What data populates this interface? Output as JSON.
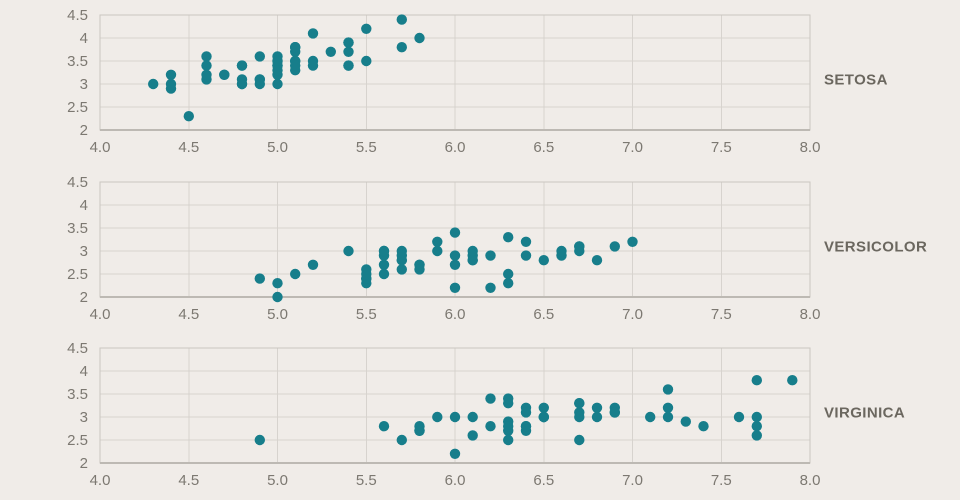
{
  "app": {
    "background": "#f0ece8"
  },
  "colors": {
    "point": "#177e8b",
    "grid": "#d7d3ce",
    "border": "#cac6c0",
    "axis_bottom": "#bdb9b3",
    "tick_label": "#7c7871",
    "series_label": "#6b675f"
  },
  "chart_data": [
    {
      "type": "scatter",
      "label": "SETOSA",
      "title": "",
      "xlabel": "",
      "ylabel": "",
      "grid": true,
      "legend": "none",
      "xlim": [
        4.0,
        8.0
      ],
      "ylim": [
        2.0,
        4.5
      ],
      "x_tick_values": [
        4.0,
        4.5,
        5.0,
        5.5,
        6.0,
        6.5,
        7.0,
        7.5,
        8.0
      ],
      "x_tick_labels": [
        "4.0",
        "4.5",
        "5.0",
        "5.5",
        "6.0",
        "6.5",
        "7.0",
        "7.5",
        "8.0"
      ],
      "y_tick_values": [
        2.0,
        2.5,
        3.0,
        3.5,
        4.0,
        4.5
      ],
      "y_tick_labels": [
        "2",
        "2.5",
        "3",
        "3.5",
        "4",
        "4.5"
      ],
      "points": [
        [
          5.1,
          3.5
        ],
        [
          4.9,
          3.0
        ],
        [
          4.7,
          3.2
        ],
        [
          4.6,
          3.1
        ],
        [
          5.0,
          3.6
        ],
        [
          5.4,
          3.9
        ],
        [
          4.6,
          3.4
        ],
        [
          5.0,
          3.4
        ],
        [
          4.4,
          2.9
        ],
        [
          4.9,
          3.1
        ],
        [
          5.4,
          3.7
        ],
        [
          4.8,
          3.4
        ],
        [
          4.8,
          3.0
        ],
        [
          4.3,
          3.0
        ],
        [
          5.8,
          4.0
        ],
        [
          5.7,
          4.4
        ],
        [
          5.4,
          3.9
        ],
        [
          5.1,
          3.5
        ],
        [
          5.7,
          3.8
        ],
        [
          5.1,
          3.8
        ],
        [
          5.4,
          3.4
        ],
        [
          5.1,
          3.7
        ],
        [
          4.6,
          3.6
        ],
        [
          5.1,
          3.3
        ],
        [
          4.8,
          3.4
        ],
        [
          5.0,
          3.0
        ],
        [
          5.0,
          3.4
        ],
        [
          5.2,
          3.5
        ],
        [
          5.2,
          3.4
        ],
        [
          4.7,
          3.2
        ],
        [
          4.8,
          3.1
        ],
        [
          5.4,
          3.4
        ],
        [
          5.2,
          4.1
        ],
        [
          5.5,
          4.2
        ],
        [
          4.9,
          3.1
        ],
        [
          5.0,
          3.2
        ],
        [
          5.5,
          3.5
        ],
        [
          4.9,
          3.6
        ],
        [
          4.4,
          3.0
        ],
        [
          5.1,
          3.4
        ],
        [
          5.0,
          3.5
        ],
        [
          4.5,
          2.3
        ],
        [
          4.4,
          3.2
        ],
        [
          5.0,
          3.5
        ],
        [
          5.1,
          3.8
        ],
        [
          4.8,
          3.0
        ],
        [
          5.1,
          3.8
        ],
        [
          4.6,
          3.2
        ],
        [
          5.3,
          3.7
        ],
        [
          5.0,
          3.3
        ]
      ]
    },
    {
      "type": "scatter",
      "label": "VERSICOLOR",
      "title": "",
      "xlabel": "",
      "ylabel": "",
      "grid": true,
      "legend": "none",
      "xlim": [
        4.0,
        8.0
      ],
      "ylim": [
        2.0,
        4.5
      ],
      "x_tick_values": [
        4.0,
        4.5,
        5.0,
        5.5,
        6.0,
        6.5,
        7.0,
        7.5,
        8.0
      ],
      "x_tick_labels": [
        "4.0",
        "4.5",
        "5.0",
        "5.5",
        "6.0",
        "6.5",
        "7.0",
        "7.5",
        "8.0"
      ],
      "y_tick_values": [
        2.0,
        2.5,
        3.0,
        3.5,
        4.0,
        4.5
      ],
      "y_tick_labels": [
        "2",
        "2.5",
        "3",
        "3.5",
        "4",
        "4.5"
      ],
      "points": [
        [
          7.0,
          3.2
        ],
        [
          6.4,
          3.2
        ],
        [
          6.9,
          3.1
        ],
        [
          5.5,
          2.3
        ],
        [
          6.5,
          2.8
        ],
        [
          5.7,
          2.8
        ],
        [
          6.3,
          3.3
        ],
        [
          4.9,
          2.4
        ],
        [
          6.6,
          2.9
        ],
        [
          5.2,
          2.7
        ],
        [
          5.0,
          2.0
        ],
        [
          5.9,
          3.0
        ],
        [
          6.0,
          2.2
        ],
        [
          6.1,
          2.9
        ],
        [
          5.6,
          2.9
        ],
        [
          6.7,
          3.1
        ],
        [
          5.6,
          3.0
        ],
        [
          5.8,
          2.7
        ],
        [
          6.2,
          2.2
        ],
        [
          5.6,
          2.5
        ],
        [
          5.9,
          3.2
        ],
        [
          6.1,
          2.8
        ],
        [
          6.3,
          2.5
        ],
        [
          6.1,
          2.8
        ],
        [
          6.4,
          2.9
        ],
        [
          6.6,
          3.0
        ],
        [
          6.8,
          2.8
        ],
        [
          6.7,
          3.0
        ],
        [
          6.0,
          2.9
        ],
        [
          5.7,
          2.6
        ],
        [
          5.5,
          2.4
        ],
        [
          5.5,
          2.4
        ],
        [
          5.8,
          2.7
        ],
        [
          6.0,
          2.7
        ],
        [
          5.4,
          3.0
        ],
        [
          6.0,
          3.4
        ],
        [
          6.7,
          3.1
        ],
        [
          6.3,
          2.3
        ],
        [
          5.6,
          3.0
        ],
        [
          5.5,
          2.5
        ],
        [
          5.5,
          2.6
        ],
        [
          6.1,
          3.0
        ],
        [
          5.8,
          2.6
        ],
        [
          5.0,
          2.3
        ],
        [
          5.6,
          2.7
        ],
        [
          5.7,
          3.0
        ],
        [
          5.7,
          2.9
        ],
        [
          6.2,
          2.9
        ],
        [
          5.1,
          2.5
        ],
        [
          5.7,
          2.8
        ]
      ]
    },
    {
      "type": "scatter",
      "label": "VIRGINICA",
      "title": "",
      "xlabel": "",
      "ylabel": "",
      "grid": true,
      "legend": "none",
      "xlim": [
        4.0,
        8.0
      ],
      "ylim": [
        2.0,
        4.5
      ],
      "x_tick_values": [
        4.0,
        4.5,
        5.0,
        5.5,
        6.0,
        6.5,
        7.0,
        7.5,
        8.0
      ],
      "x_tick_labels": [
        "4.0",
        "4.5",
        "5.0",
        "5.5",
        "6.0",
        "6.5",
        "7.0",
        "7.5",
        "8.0"
      ],
      "y_tick_values": [
        2.0,
        2.5,
        3.0,
        3.5,
        4.0,
        4.5
      ],
      "y_tick_labels": [
        "2",
        "2.5",
        "3",
        "3.5",
        "4",
        "4.5"
      ],
      "points": [
        [
          6.3,
          3.3
        ],
        [
          5.8,
          2.7
        ],
        [
          7.1,
          3.0
        ],
        [
          6.3,
          2.9
        ],
        [
          6.5,
          3.0
        ],
        [
          7.6,
          3.0
        ],
        [
          4.9,
          2.5
        ],
        [
          7.3,
          2.9
        ],
        [
          6.7,
          2.5
        ],
        [
          7.2,
          3.6
        ],
        [
          6.5,
          3.2
        ],
        [
          6.4,
          2.7
        ],
        [
          6.8,
          3.0
        ],
        [
          5.7,
          2.5
        ],
        [
          5.8,
          2.8
        ],
        [
          6.4,
          3.2
        ],
        [
          6.5,
          3.0
        ],
        [
          7.7,
          3.8
        ],
        [
          7.7,
          2.6
        ],
        [
          6.0,
          2.2
        ],
        [
          6.9,
          3.2
        ],
        [
          5.6,
          2.8
        ],
        [
          7.7,
          2.8
        ],
        [
          6.3,
          2.7
        ],
        [
          6.7,
          3.3
        ],
        [
          7.2,
          3.2
        ],
        [
          6.2,
          2.8
        ],
        [
          6.1,
          3.0
        ],
        [
          6.4,
          2.8
        ],
        [
          7.2,
          3.0
        ],
        [
          7.4,
          2.8
        ],
        [
          7.9,
          3.8
        ],
        [
          6.4,
          2.8
        ],
        [
          6.3,
          2.8
        ],
        [
          6.1,
          2.6
        ],
        [
          7.7,
          3.0
        ],
        [
          6.3,
          3.4
        ],
        [
          6.4,
          3.1
        ],
        [
          6.0,
          3.0
        ],
        [
          6.9,
          3.1
        ],
        [
          6.7,
          3.1
        ],
        [
          6.9,
          3.1
        ],
        [
          5.8,
          2.7
        ],
        [
          6.8,
          3.2
        ],
        [
          6.7,
          3.3
        ],
        [
          6.7,
          3.0
        ],
        [
          6.3,
          2.5
        ],
        [
          6.5,
          3.0
        ],
        [
          6.2,
          3.4
        ],
        [
          5.9,
          3.0
        ]
      ]
    }
  ]
}
